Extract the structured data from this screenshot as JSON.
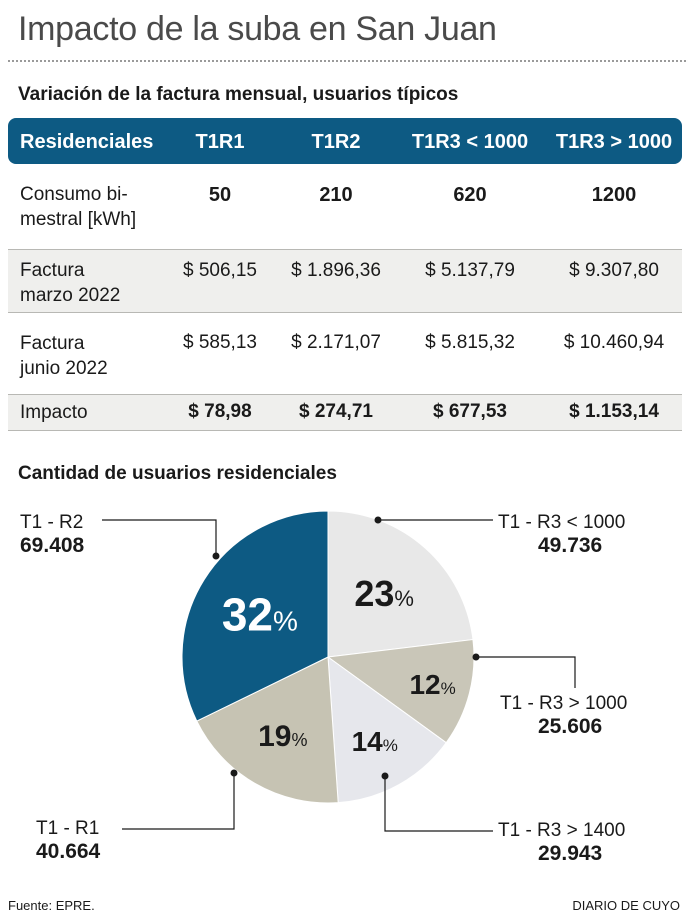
{
  "title": "Impacto de la suba en San Juan",
  "table": {
    "subtitle": "Variación de la factura mensual, usuarios típicos",
    "headers": [
      "Residenciales",
      "T1R1",
      "T1R2",
      "T1R3 < 1000",
      "T1R3 > 1000"
    ],
    "rows": [
      {
        "label1": "Consumo bi-",
        "label2": "mestral [kWh]",
        "values": [
          "50",
          "210",
          "620",
          "1200"
        ]
      },
      {
        "label1": "Factura",
        "label2": "marzo 2022",
        "values": [
          "$ 506,15",
          "$ 1.896,36",
          "$ 5.137,79",
          "$ 9.307,80"
        ]
      },
      {
        "label1": "Factura",
        "label2": "junio 2022",
        "values": [
          "$ 585,13",
          "$ 2.171,07",
          "$ 5.815,32",
          "$ 10.460,94"
        ]
      },
      {
        "label1": "Impacto",
        "label2": "",
        "values": [
          "$ 78,98",
          "$ 274,71",
          "$ 677,53",
          "$ 1.153,14"
        ]
      }
    ]
  },
  "pie": {
    "subtitle": "Cantidad de usuarios residenciales"
  },
  "chart_data": {
    "type": "pie",
    "title": "Cantidad de usuarios residenciales",
    "slices": [
      {
        "label": "T1 - R3 < 1000",
        "value": 49736,
        "percent_label": "23",
        "color": "#e8e8e8"
      },
      {
        "label": "T1 - R3 > 1000",
        "value": 25606,
        "percent_label": "12",
        "color": "#c9c6b8"
      },
      {
        "label": "T1 - R3 > 1400",
        "value": 29943,
        "percent_label": "14",
        "color": "#e6e7ec"
      },
      {
        "label": "T1 - R1",
        "value": 40664,
        "percent_label": "19",
        "color": "#c6c3b3"
      },
      {
        "label": "T1 - R2",
        "value": 69408,
        "percent_label": "32",
        "color": "#0d5a83"
      }
    ],
    "value_labels": [
      "49.736",
      "25.606",
      "29.943",
      "40.664",
      "69.408"
    ],
    "percent_suffix": "%"
  },
  "footer": {
    "source": "Fuente: EPRE.",
    "brand": "DIARIO DE CUYO"
  }
}
